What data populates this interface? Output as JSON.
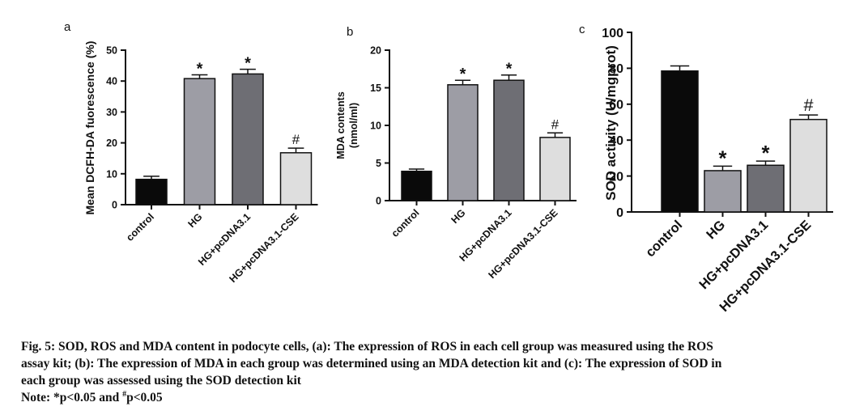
{
  "chart_data": [
    {
      "type": "bar",
      "panel_label": "a",
      "ylabel": "Mean DCFH-DA fuorescence (%)",
      "categories": [
        "control",
        "HG",
        "HG+pcDNA3.1",
        "HG+pcDNA3.1-CSE"
      ],
      "values": [
        8.2,
        40.8,
        42.3,
        16.8
      ],
      "errors": [
        1.0,
        1.2,
        1.5,
        1.5
      ],
      "annotations": [
        "",
        "*",
        "*",
        "#"
      ],
      "bar_colors": [
        "#0a0a0a",
        "#9d9da5",
        "#6e6e74",
        "#dedede"
      ],
      "ylim": [
        0,
        50
      ],
      "yticks": [
        0,
        10,
        20,
        30,
        40,
        50
      ]
    },
    {
      "type": "bar",
      "panel_label": "b",
      "ylabel_lines": [
        "MDA contents",
        "(nmol/ml)"
      ],
      "categories": [
        "control",
        "HG",
        "HG+pcDNA3.1",
        "HG+pcDNA3.1-CSE"
      ],
      "values": [
        3.9,
        15.4,
        16.0,
        8.4
      ],
      "errors": [
        0.3,
        0.6,
        0.7,
        0.6
      ],
      "annotations": [
        "",
        "*",
        "*",
        "#"
      ],
      "bar_colors": [
        "#0a0a0a",
        "#9d9da5",
        "#6e6e74",
        "#dedede"
      ],
      "ylim": [
        0,
        20
      ],
      "yticks": [
        0,
        5,
        10,
        15,
        20
      ]
    },
    {
      "type": "bar",
      "panel_label": "c",
      "ylabel": "SOD activity (U/mgprot)",
      "categories": [
        "control",
        "HG",
        "HG+pcDNA3.1",
        "HG+pcDNA3.1-CSE"
      ],
      "values": [
        78.5,
        23.0,
        26.0,
        51.5
      ],
      "errors": [
        2.8,
        2.5,
        2.3,
        2.5
      ],
      "annotations": [
        "",
        "*",
        "*",
        "#"
      ],
      "bar_colors": [
        "#0a0a0a",
        "#9d9da5",
        "#6e6e74",
        "#dedede"
      ],
      "ylim": [
        0,
        100
      ],
      "yticks": [
        0,
        20,
        40,
        60,
        80,
        100
      ]
    }
  ],
  "caption": {
    "line1": "Fig. 5: SOD, ROS and MDA content in podocyte cells, (a): The expression of ROS in each cell group was measured using the ROS",
    "line2": "assay kit; (b): The expression of MDA in each group was determined using an MDA detection kit and (c): The expression of SOD in",
    "line3": "each group was assessed using the SOD detection kit",
    "note_prefix": "Note: *p<0.05 and ",
    "note_sup": "#",
    "note_suffix": "p<0.05"
  }
}
